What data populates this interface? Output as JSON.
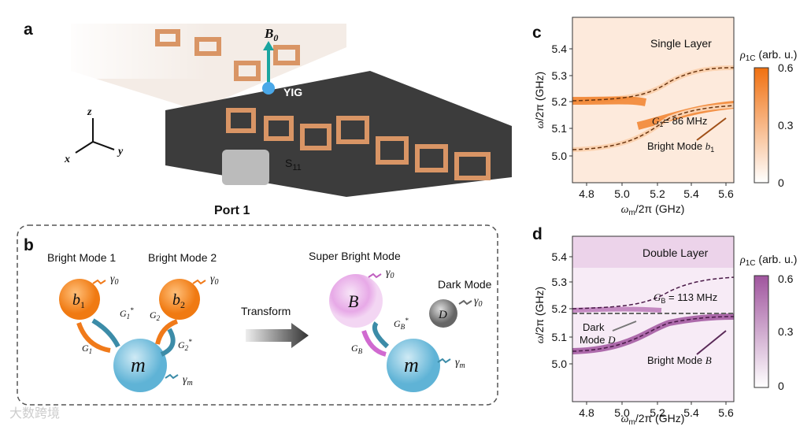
{
  "panel_a": {
    "label": "a",
    "field": "B",
    "field_sub": "0",
    "sample": "YIG",
    "axis_z": "z",
    "axis_x": "x",
    "axis_y": "y",
    "param": "S",
    "param_sub": "11",
    "port": "Port 1"
  },
  "panel_b": {
    "label": "b",
    "bright1": "Bright Mode 1",
    "bright2": "Bright Mode 2",
    "super": "Super Bright Mode",
    "dark": "Dark Mode",
    "transform": "Transform",
    "b1": "b",
    "b1_sub": "1",
    "b2": "b",
    "b2_sub": "2",
    "m": "m",
    "B": "B",
    "D": "D",
    "gamma": "γ",
    "gamma_b_sub": "0",
    "gamma_m_sub": "m",
    "G": "G",
    "G1_sub": "1",
    "G2_sub": "2",
    "GB_sub": "B",
    "conj": "*"
  },
  "panel_c": {
    "label": "c",
    "layer": "Single Layer",
    "coupling_sym": "G",
    "coupling_sub": "1",
    "coupling_value": "= 86 MHz",
    "mode_text": "Bright Mode ",
    "mode_sym": "b",
    "mode_sub": "1",
    "y_label_sym": "ω",
    "y_label_rest": "/2π (GHz)",
    "x_label_sym": "ω",
    "x_label_sub": "m",
    "x_label_rest": "/2π (GHz)",
    "yticks": [
      "5.4",
      "5.3",
      "5.2",
      "5.1",
      "5.0"
    ],
    "xticks": [
      "4.8",
      "5.0",
      "5.2",
      "5.4",
      "5.6"
    ],
    "cb_sym": "ρ",
    "cb_sub": "1C",
    "cb_rest": " (arb. u.)",
    "cb_ticks": [
      "0.6",
      "0.3",
      "0"
    ]
  },
  "panel_d": {
    "label": "d",
    "layer": "Double Layer",
    "coupling_sym": "G",
    "coupling_sub": "B",
    "coupling_value": " = 113 MHz",
    "dark_text": "Dark",
    "dark_text2": "Mode ",
    "dark_sym": "D",
    "mode_text": "Bright Mode ",
    "mode_sym": "B",
    "y_label_sym": "ω",
    "y_label_rest": "/2π (GHz)",
    "x_label_sym": "ω",
    "x_label_sub": "m",
    "x_label_rest": "/2π (GHz)",
    "yticks": [
      "5.4",
      "5.3",
      "5.2",
      "5.1",
      "5.0"
    ],
    "xticks": [
      "4.8",
      "5.0",
      "5.2",
      "5.4",
      "5.6"
    ],
    "cb_sym": "ρ",
    "cb_sub": "1C",
    "cb_rest": " (arb. u.)",
    "cb_ticks": [
      "0.6",
      "0.3",
      "0"
    ]
  },
  "watermark": "大数跨境"
}
